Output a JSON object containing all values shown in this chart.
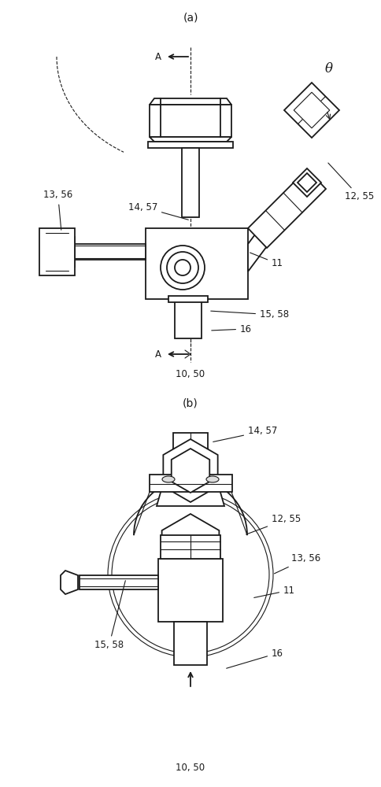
{
  "bg_color": "#ffffff",
  "line_color": "#1a1a1a",
  "lw": 1.3,
  "lw_thin": 0.8,
  "fig_a": "(a)",
  "fig_b": "(b)",
  "l_10_50": "10, 50",
  "l_11": "11",
  "l_12_55": "12, 55",
  "l_13_56": "13, 56",
  "l_14_57": "14, 57",
  "l_15_58": "15, 58",
  "l_16": "16",
  "l_theta": "θ",
  "fs": 8.5,
  "fs_fig": 10.0
}
